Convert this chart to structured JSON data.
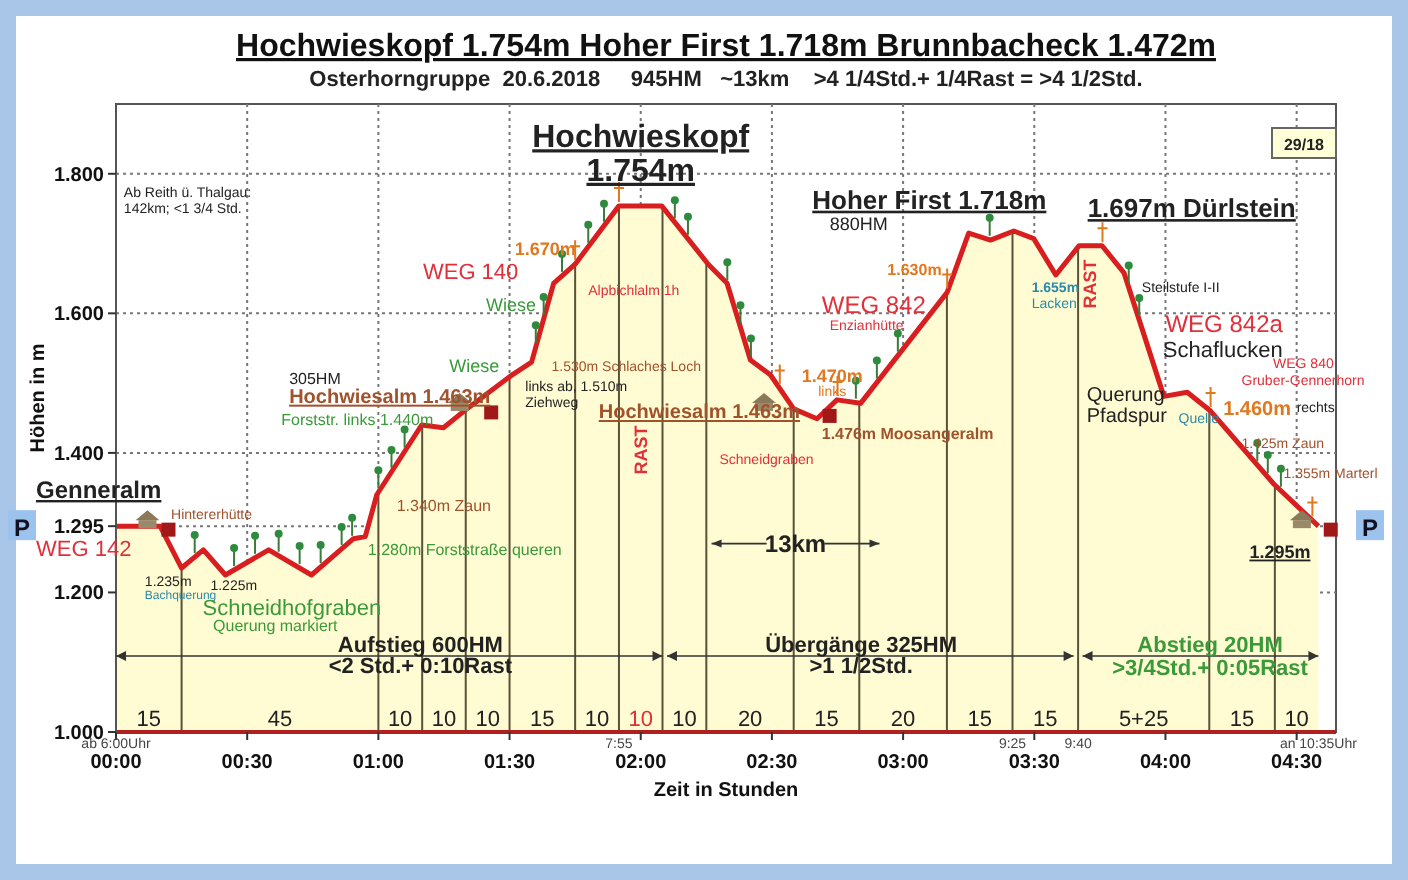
{
  "chart_data": {
    "type": "area",
    "title": "Hochwieskopf 1.754m  Hoher First 1.718m  Brunnbacheck 1.472m",
    "subtitle": "Osterhorngruppe  20.6.2018     945HM   ~13km    >4 1/4Std.+ 1/4Rast = >4 1/2Std.",
    "xlabel": "Zeit in Stunden",
    "ylabel": "Höhen in m",
    "x": [
      0,
      0.168,
      0.25,
      0.333,
      0.417,
      0.582,
      0.745,
      0.905,
      0.95,
      0.994,
      1.165,
      1.248,
      1.337,
      1.503,
      1.584,
      1.668,
      1.749,
      1.917,
      2.08,
      2.258,
      2.329,
      2.418,
      2.494,
      2.583,
      2.672,
      2.748,
      2.838,
      3.168,
      3.25,
      3.333,
      3.422,
      3.498,
      3.582,
      3.671,
      3.758,
      3.842,
      3.994,
      4.083,
      4.172,
      4.414,
      4.583
    ],
    "series": [
      {
        "color": "#d81e1e",
        "values": [
          1295,
          1295,
          1235,
          1261,
          1225,
          1261,
          1225,
          1277,
          1280,
          1340,
          1440,
          1436,
          1463,
          1510,
          1530,
          1643,
          1670,
          1754,
          1754,
          1670,
          1643,
          1533,
          1512,
          1463,
          1449,
          1476,
          1471,
          1630,
          1715,
          1705,
          1718,
          1707,
          1655,
          1697,
          1697,
          1658,
          1481,
          1487,
          1460,
          1355,
          1295
        ]
      }
    ],
    "xlim": [
      0,
      4.65
    ],
    "ylim": [
      1000,
      1900
    ],
    "xticks": [
      {
        "value": 0,
        "label": "00:00"
      },
      {
        "value": 0.5,
        "label": "00:30"
      },
      {
        "value": 1,
        "label": "01:00"
      },
      {
        "value": 1.5,
        "label": "01:30"
      },
      {
        "value": 2,
        "label": "02:00"
      },
      {
        "value": 2.5,
        "label": "02:30"
      },
      {
        "value": 3,
        "label": "03:00"
      },
      {
        "value": 3.5,
        "label": "03:30"
      },
      {
        "value": 4,
        "label": "04:00"
      },
      {
        "value": 4.5,
        "label": "04:30"
      }
    ],
    "yticks": [
      {
        "value": 1000,
        "label": "1.000"
      },
      {
        "value": 1200,
        "label": "1.200"
      },
      {
        "value": 1295,
        "label": "1.295"
      },
      {
        "value": 1400,
        "label": "1.400"
      },
      {
        "value": 1600,
        "label": "1.600"
      },
      {
        "value": 1800,
        "label": "1.800"
      }
    ],
    "grid": true,
    "marker": "none",
    "line_style": "solid",
    "ref_lines": [
      {
        "axis": "x",
        "value": 0.25
      },
      {
        "axis": "x",
        "value": 1.0
      },
      {
        "axis": "x",
        "value": 1.167
      },
      {
        "axis": "x",
        "value": 1.333
      },
      {
        "axis": "x",
        "value": 1.5
      },
      {
        "axis": "x",
        "value": 1.75
      },
      {
        "axis": "x",
        "value": 1.917
      },
      {
        "axis": "x",
        "value": 2.083
      },
      {
        "axis": "x",
        "value": 2.25
      },
      {
        "axis": "x",
        "value": 2.583
      },
      {
        "axis": "x",
        "value": 2.833
      },
      {
        "axis": "x",
        "value": 3.167
      },
      {
        "axis": "x",
        "value": 3.417
      },
      {
        "axis": "x",
        "value": 3.667
      },
      {
        "axis": "x",
        "value": 4.167
      },
      {
        "axis": "x",
        "value": 4.417
      }
    ],
    "annotations": [
      "Ab Reith ü. Thalgau:",
      "142km; <1 3/4 Std.",
      "Hochwieskopf",
      "1.754m",
      "Hoher First 1.718m",
      "880HM",
      "1.697m Dürlstein",
      "Hintererhütte",
      "1.235m",
      "Bachquerung",
      "1.225m",
      "Schneidhofgraben",
      "Querung markiert",
      "1.280m Forststraße queren",
      "1.340m Zaun",
      "Forststr. links 1.440m",
      "305HM",
      "Hochwiesalm 1.463m",
      "Wiese",
      "Wiese",
      "WEG 140",
      "links ab, 1.510m",
      "Ziehweg",
      "1.530m Schlaches Loch",
      "1.670m",
      "Alpbichlalm 1h",
      "RAST",
      "Hochwiesalm 1.463m",
      "Schneidgraben",
      "1.470m",
      "links",
      "1.476m Moosangeralm",
      "1.630m",
      "WEG 842",
      "Enzianhütte",
      "1.655m",
      "Lacken",
      "RAST",
      "Steilstufe I-II",
      "WEG 842a",
      "Schaflucken",
      "WEG 840",
      "Gruber-Gennerhorn",
      "Querung",
      "Pfadspur",
      "Quelle",
      "1.460m",
      "rechts",
      "1.425m Zaun",
      "1.355m Marterl",
      "1.295m",
      "13km",
      "Aufstieg 600HM",
      "<2 Std.+ 0:10Rast",
      "Übergänge 325HM",
      ">1 1/2Std.",
      "Abstieg 20HM",
      ">3/4Std.+ 0:05Rast",
      "15",
      "45",
      "10",
      "10",
      "10",
      "15",
      "10",
      "10",
      "10",
      "20",
      "15",
      "20",
      "15",
      "15",
      "5+25",
      "15",
      "10",
      "ab 6:00Uhr",
      "7:55",
      "9:25",
      "9:40",
      "an 10:35Uhr",
      "Genneralm",
      "WEG 142",
      "29/18",
      "P",
      "P"
    ]
  }
}
